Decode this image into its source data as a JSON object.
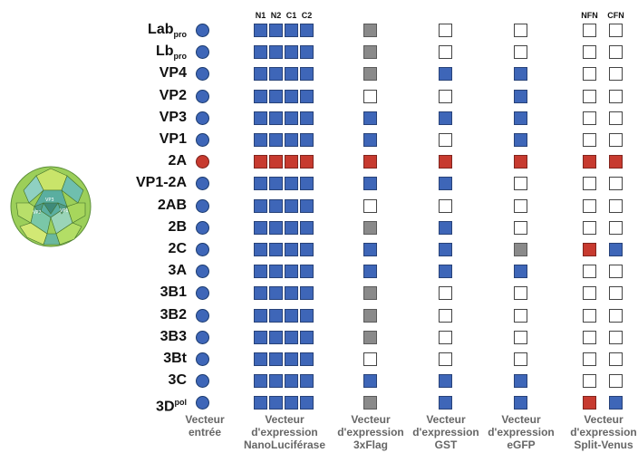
{
  "colors": {
    "blue": "#3e66b8",
    "red": "#c73a2f",
    "gray": "#8a8a8a",
    "white": "#ffffff"
  },
  "rows": [
    {
      "label": "Lab",
      "sub": "pro",
      "sup": "",
      "dot": "blue",
      "nano": [
        "blue",
        "blue",
        "blue",
        "blue"
      ],
      "flag": "gray",
      "gst": "white",
      "egfp": "white",
      "venus": [
        "white",
        "white"
      ]
    },
    {
      "label": "Lb",
      "sub": "pro",
      "sup": "",
      "dot": "blue",
      "nano": [
        "blue",
        "blue",
        "blue",
        "blue"
      ],
      "flag": "gray",
      "gst": "white",
      "egfp": "white",
      "venus": [
        "white",
        "white"
      ]
    },
    {
      "label": "VP4",
      "sub": "",
      "sup": "",
      "dot": "blue",
      "nano": [
        "blue",
        "blue",
        "blue",
        "blue"
      ],
      "flag": "gray",
      "gst": "blue",
      "egfp": "blue",
      "venus": [
        "white",
        "white"
      ]
    },
    {
      "label": "VP2",
      "sub": "",
      "sup": "",
      "dot": "blue",
      "nano": [
        "blue",
        "blue",
        "blue",
        "blue"
      ],
      "flag": "white",
      "gst": "white",
      "egfp": "blue",
      "venus": [
        "white",
        "white"
      ]
    },
    {
      "label": "VP3",
      "sub": "",
      "sup": "",
      "dot": "blue",
      "nano": [
        "blue",
        "blue",
        "blue",
        "blue"
      ],
      "flag": "blue",
      "gst": "blue",
      "egfp": "blue",
      "venus": [
        "white",
        "white"
      ]
    },
    {
      "label": "VP1",
      "sub": "",
      "sup": "",
      "dot": "blue",
      "nano": [
        "blue",
        "blue",
        "blue",
        "blue"
      ],
      "flag": "blue",
      "gst": "white",
      "egfp": "blue",
      "venus": [
        "white",
        "white"
      ]
    },
    {
      "label": "2A",
      "sub": "",
      "sup": "",
      "dot": "red",
      "nano": [
        "red",
        "red",
        "red",
        "red"
      ],
      "flag": "red",
      "gst": "red",
      "egfp": "red",
      "venus": [
        "red",
        "red"
      ]
    },
    {
      "label": "VP1-2A",
      "sub": "",
      "sup": "",
      "dot": "blue",
      "nano": [
        "blue",
        "blue",
        "blue",
        "blue"
      ],
      "flag": "blue",
      "gst": "blue",
      "egfp": "white",
      "venus": [
        "white",
        "white"
      ]
    },
    {
      "label": "2AB",
      "sub": "",
      "sup": "",
      "dot": "blue",
      "nano": [
        "blue",
        "blue",
        "blue",
        "blue"
      ],
      "flag": "white",
      "gst": "white",
      "egfp": "white",
      "venus": [
        "white",
        "white"
      ]
    },
    {
      "label": "2B",
      "sub": "",
      "sup": "",
      "dot": "blue",
      "nano": [
        "blue",
        "blue",
        "blue",
        "blue"
      ],
      "flag": "gray",
      "gst": "blue",
      "egfp": "white",
      "venus": [
        "white",
        "white"
      ]
    },
    {
      "label": "2C",
      "sub": "",
      "sup": "",
      "dot": "blue",
      "nano": [
        "blue",
        "blue",
        "blue",
        "blue"
      ],
      "flag": "blue",
      "gst": "blue",
      "egfp": "gray",
      "venus": [
        "red",
        "blue"
      ]
    },
    {
      "label": "3A",
      "sub": "",
      "sup": "",
      "dot": "blue",
      "nano": [
        "blue",
        "blue",
        "blue",
        "blue"
      ],
      "flag": "blue",
      "gst": "blue",
      "egfp": "blue",
      "venus": [
        "white",
        "white"
      ]
    },
    {
      "label": "3B1",
      "sub": "",
      "sup": "",
      "dot": "blue",
      "nano": [
        "blue",
        "blue",
        "blue",
        "blue"
      ],
      "flag": "gray",
      "gst": "white",
      "egfp": "white",
      "venus": [
        "white",
        "white"
      ]
    },
    {
      "label": "3B2",
      "sub": "",
      "sup": "",
      "dot": "blue",
      "nano": [
        "blue",
        "blue",
        "blue",
        "blue"
      ],
      "flag": "gray",
      "gst": "white",
      "egfp": "white",
      "venus": [
        "white",
        "white"
      ]
    },
    {
      "label": "3B3",
      "sub": "",
      "sup": "",
      "dot": "blue",
      "nano": [
        "blue",
        "blue",
        "blue",
        "blue"
      ],
      "flag": "gray",
      "gst": "white",
      "egfp": "white",
      "venus": [
        "white",
        "white"
      ]
    },
    {
      "label": "3Bt",
      "sub": "",
      "sup": "",
      "dot": "blue",
      "nano": [
        "blue",
        "blue",
        "blue",
        "blue"
      ],
      "flag": "white",
      "gst": "white",
      "egfp": "white",
      "venus": [
        "white",
        "white"
      ]
    },
    {
      "label": "3C",
      "sub": "",
      "sup": "",
      "dot": "blue",
      "nano": [
        "blue",
        "blue",
        "blue",
        "blue"
      ],
      "flag": "blue",
      "gst": "blue",
      "egfp": "blue",
      "venus": [
        "white",
        "white"
      ]
    },
    {
      "label": "3D",
      "sub": "",
      "sup": "pol",
      "dot": "blue",
      "nano": [
        "blue",
        "blue",
        "blue",
        "blue"
      ],
      "flag": "gray",
      "gst": "blue",
      "egfp": "blue",
      "venus": [
        "red",
        "blue"
      ]
    }
  ],
  "headers": {
    "nano": [
      "N1",
      "N2",
      "C1",
      "C2"
    ],
    "venus": [
      "NFN",
      "CFN"
    ]
  },
  "footers": {
    "entree": [
      "Vecteur",
      "entrée"
    ],
    "nano": [
      "Vecteur",
      "d'expression",
      "NanoLuciférase"
    ],
    "flag": [
      "Vecteur",
      "d'expression",
      "3xFlag"
    ],
    "gst": [
      "Vecteur",
      "d'expression",
      "GST"
    ],
    "egfp": [
      "Vecteur",
      "d'expression",
      "eGFP"
    ],
    "venus": [
      "Vecteur",
      "d'expression",
      "Split-Venus"
    ]
  },
  "virus_icon": "picornavirus-capsid-icon"
}
